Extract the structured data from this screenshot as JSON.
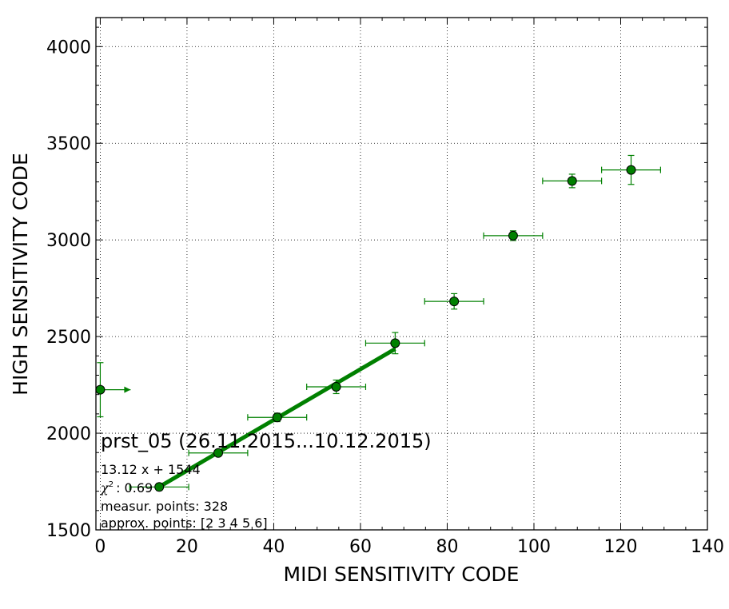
{
  "chart_data": {
    "type": "scatter",
    "title": "prst_05 (26.11.2015...10.12.2015)",
    "xlabel": "MIDI SENSITIVITY CODE",
    "ylabel": "HIGH SENSITIVITY CODE",
    "xlim": [
      -1,
      140
    ],
    "ylim": [
      1500,
      4150
    ],
    "xticks": [
      "0",
      "20",
      "40",
      "60",
      "80",
      "100",
      "120",
      "140"
    ],
    "yticks": [
      "1500",
      "2000",
      "2500",
      "3000",
      "3500",
      "4000"
    ],
    "grid": true,
    "color": "#008000",
    "points": [
      {
        "x": 0,
        "y": 2225,
        "xerr_lo": 0,
        "xerr_hi": 7,
        "yerr": 140,
        "upper_limit_arrow": true
      },
      {
        "x": 13.6,
        "y": 1722,
        "xerr_lo": 6.8,
        "xerr_hi": 6.8,
        "yerr": 18
      },
      {
        "x": 27.2,
        "y": 1898,
        "xerr_lo": 6.8,
        "xerr_hi": 6.8,
        "yerr": 15
      },
      {
        "x": 40.8,
        "y": 2082,
        "xerr_lo": 6.8,
        "xerr_hi": 6.8,
        "yerr": 22
      },
      {
        "x": 54.4,
        "y": 2240,
        "xerr_lo": 6.8,
        "xerr_hi": 6.8,
        "yerr": 35
      },
      {
        "x": 68.0,
        "y": 2466,
        "xerr_lo": 6.8,
        "xerr_hi": 6.8,
        "yerr": 55
      },
      {
        "x": 81.6,
        "y": 2682,
        "xerr_lo": 6.8,
        "xerr_hi": 6.8,
        "yerr": 40
      },
      {
        "x": 95.2,
        "y": 3022,
        "xerr_lo": 6.8,
        "xerr_hi": 6.8,
        "yerr": 25
      },
      {
        "x": 108.8,
        "y": 3305,
        "xerr_lo": 6.8,
        "xerr_hi": 6.8,
        "yerr": 35
      },
      {
        "x": 122.4,
        "y": 3362,
        "xerr_lo": 6.8,
        "xerr_hi": 6.8,
        "yerr": 75
      }
    ],
    "fit": {
      "slope": 13.12,
      "intercept": 1544,
      "x_range": [
        13.6,
        68.0
      ]
    },
    "annotations": [
      "13.12 x + 1544",
      ": 0.69",
      "measur. points: 328",
      "approx. points: [2 3 4 5 6]"
    ],
    "chi_symbol": "χ",
    "chi_exp": "2"
  }
}
